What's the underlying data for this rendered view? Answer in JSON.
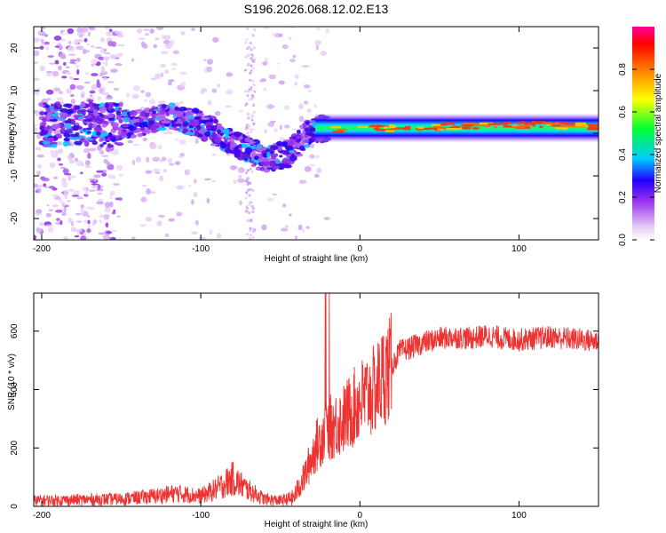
{
  "title": "S196.2026.068.12.02.E13",
  "chart_data": [
    {
      "type": "heatmap",
      "name": "spectrogram",
      "xlabel": "Height of straight line (km)",
      "ylabel": "Frequency (Hz)",
      "xlim": [
        -205,
        150
      ],
      "ylim": [
        -25,
        25
      ],
      "x_ticks": [
        -200,
        -100,
        0,
        100
      ],
      "y_ticks": [
        -20,
        -10,
        0,
        10,
        20
      ],
      "colorbar": {
        "label": "Normalized spectral amplitude",
        "range": [
          0,
          1
        ],
        "ticks": [
          0.0,
          0.2,
          0.4,
          0.6,
          0.8
        ]
      },
      "ridge": [
        {
          "x": -145,
          "f": 2
        },
        {
          "x": -120,
          "f": 4
        },
        {
          "x": -100,
          "f": 2
        },
        {
          "x": -80,
          "f": -2
        },
        {
          "x": -60,
          "f": -6
        },
        {
          "x": -45,
          "f": -5
        },
        {
          "x": -30,
          "f": 1
        },
        {
          "x": 0,
          "f": 1
        },
        {
          "x": 50,
          "f": 1.5
        },
        {
          "x": 100,
          "f": 2
        },
        {
          "x": 150,
          "f": 1.5
        }
      ]
    },
    {
      "type": "line",
      "name": "snr",
      "xlabel": "Height of straight line (km)",
      "ylabel": "SNR (10 * v/v)",
      "xlim": [
        -205,
        150
      ],
      "ylim": [
        0,
        730
      ],
      "x_ticks": [
        -200,
        -100,
        0,
        100
      ],
      "y_ticks": [
        0,
        200,
        400,
        600
      ],
      "color": "#ee3333",
      "series": [
        {
          "name": "SNR",
          "x": [
            -205,
            -180,
            -150,
            -130,
            -115,
            -100,
            -90,
            -80,
            -70,
            -60,
            -50,
            -42,
            -35,
            -28,
            -22,
            -15,
            -10,
            -5,
            0,
            5,
            10,
            15,
            20,
            25,
            30,
            40,
            50,
            60,
            70,
            80,
            90,
            100,
            110,
            120,
            130,
            140,
            150
          ],
          "y": [
            20,
            22,
            25,
            35,
            45,
            35,
            60,
            95,
            55,
            25,
            20,
            28,
            100,
            200,
            260,
            280,
            300,
            330,
            360,
            380,
            400,
            450,
            480,
            530,
            540,
            560,
            575,
            580,
            575,
            585,
            575,
            570,
            575,
            580,
            575,
            570,
            565
          ]
        }
      ]
    }
  ]
}
